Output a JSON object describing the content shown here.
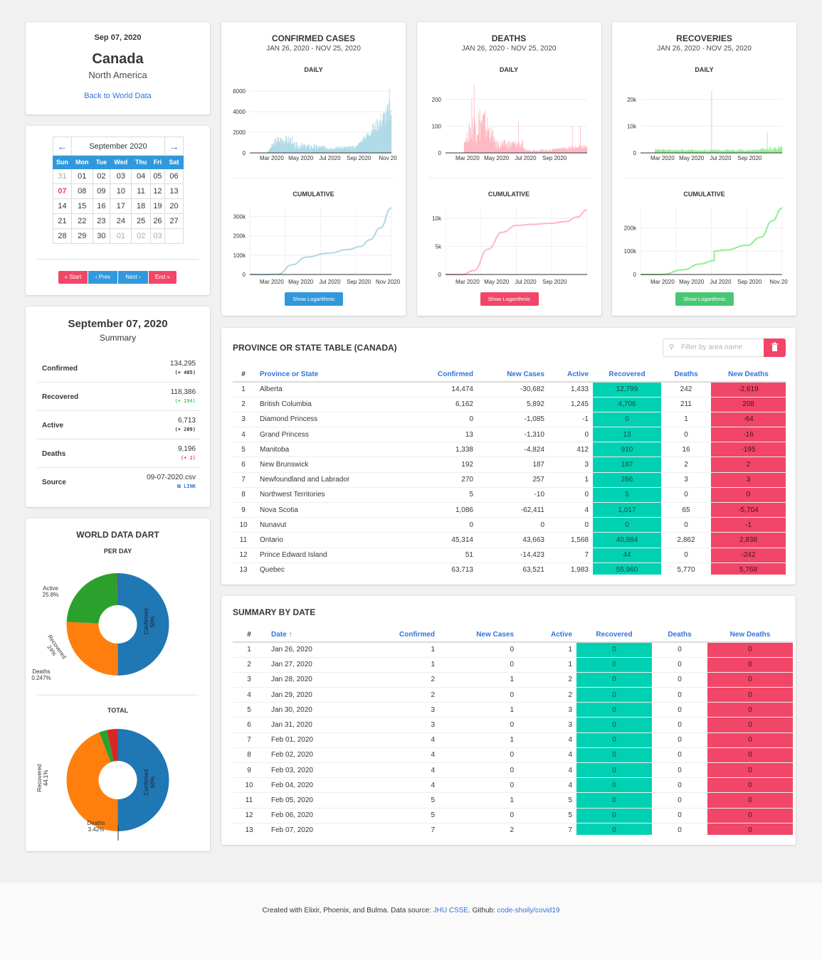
{
  "location": {
    "date": "Sep 07, 2020",
    "country": "Canada",
    "region": "North America",
    "back_link": "Back to World Data"
  },
  "calendar": {
    "month": "September 2020",
    "weekdays": [
      "Sun",
      "Mon",
      "Tue",
      "Wed",
      "Thu",
      "Fri",
      "Sat"
    ],
    "weeks": [
      [
        "31",
        "01",
        "02",
        "03",
        "04",
        "05",
        "06"
      ],
      [
        "07",
        "08",
        "09",
        "10",
        "11",
        "12",
        "13"
      ],
      [
        "14",
        "15",
        "16",
        "17",
        "18",
        "19",
        "20"
      ],
      [
        "21",
        "22",
        "23",
        "24",
        "25",
        "26",
        "27"
      ],
      [
        "28",
        "29",
        "30",
        "01",
        "02",
        "03",
        ""
      ]
    ],
    "today": "07",
    "buttons": {
      "start": "Start",
      "prev": "Prev",
      "next": "Next",
      "end": "End"
    }
  },
  "summary": {
    "title": "September 07, 2020",
    "subtitle": "Summary",
    "rows": [
      {
        "label": "Confirmed",
        "value": "134,295",
        "delta": "(+ 405)",
        "color": "#363636"
      },
      {
        "label": "Recovered",
        "value": "118,386",
        "delta": "(+ 194)",
        "color": "#48c774"
      },
      {
        "label": "Active",
        "value": "6,713",
        "delta": "(+ 209)",
        "color": "#363636"
      },
      {
        "label": "Deaths",
        "value": "9,196",
        "delta": "(+ 2)",
        "color": "#f14668"
      }
    ],
    "source": {
      "label": "Source",
      "file": "09-07-2020.csv",
      "link": "LINK"
    }
  },
  "donuts": {
    "title": "WORLD DATA DART",
    "per_day": "PER DAY",
    "total": "TOTAL",
    "per_day_slices": [
      {
        "name": "Confirmed",
        "pct": "50%",
        "value": 50,
        "color": "#1f77b4"
      },
      {
        "name": "Active",
        "pct": "25.8%",
        "value": 25.8,
        "color": "#ff7f0e"
      },
      {
        "name": "Recovered",
        "pct": "24%",
        "value": 24,
        "color": "#2ca02c"
      },
      {
        "name": "Deaths",
        "pct": "0.247%",
        "value": 0.247,
        "color": "#d62728"
      }
    ],
    "total_slices": [
      {
        "name": "Confirmed",
        "pct": "50%",
        "value": 50,
        "color": "#1f77b4"
      },
      {
        "name": "Recovered",
        "pct": "44.1%",
        "value": 44.1,
        "color": "#ff7f0e"
      },
      {
        "name": "",
        "pct": "",
        "value": 2.5,
        "color": "#2ca02c"
      },
      {
        "name": "Deaths",
        "pct": "3.42%",
        "value": 3.42,
        "color": "#d62728"
      }
    ]
  },
  "charts": {
    "daily_label": "DAILY",
    "cumulative_label": "CUMULATIVE",
    "log_button": "Show Logarithmic",
    "panels": [
      {
        "title": "CONFIRMED CASES",
        "range": "JAN 26, 2020 - NOV 25, 2020",
        "color": "#add8e6",
        "button_color": "#3298dc",
        "daily_ticks": [
          "0",
          "2000",
          "4000",
          "6000"
        ],
        "daily_max": 6500,
        "daily_x": [
          "Mar 2020",
          "May 2020",
          "Jul 2020",
          "Sep 2020",
          "Nov 20"
        ],
        "cum_ticks": [
          "0",
          "100k",
          "200k",
          "300k"
        ],
        "cum_max": 350000,
        "cum_x": [
          "Mar 2020",
          "May 2020",
          "Jul 2020",
          "Sep 2020",
          "Nov 2020"
        ],
        "cum_points": [
          [
            0,
            0
          ],
          [
            0.12,
            0
          ],
          [
            0.2,
            2000
          ],
          [
            0.3,
            50000
          ],
          [
            0.4,
            90000
          ],
          [
            0.55,
            110000
          ],
          [
            0.7,
            130000
          ],
          [
            0.78,
            145000
          ],
          [
            0.85,
            180000
          ],
          [
            0.92,
            240000
          ],
          [
            1,
            345000
          ]
        ]
      },
      {
        "title": "DEATHS",
        "range": "JAN 26, 2020 - NOV 25, 2020",
        "color": "#ffb6c1",
        "button_color": "#f14668",
        "daily_ticks": [
          "0",
          "100",
          "200"
        ],
        "daily_max": 250,
        "daily_x": [
          "Mar 2020",
          "May 2020",
          "Jul 2020",
          "Sep 2020"
        ],
        "cum_ticks": [
          "0",
          "5k",
          "10k"
        ],
        "cum_max": 12000,
        "cum_x": [
          "Mar 2020",
          "May 2020",
          "Jul 2020",
          "Sep 2020"
        ],
        "cum_points": [
          [
            0,
            0
          ],
          [
            0.12,
            0
          ],
          [
            0.2,
            700
          ],
          [
            0.3,
            4500
          ],
          [
            0.4,
            7500
          ],
          [
            0.5,
            8700
          ],
          [
            0.6,
            8900
          ],
          [
            0.75,
            9100
          ],
          [
            0.85,
            9400
          ],
          [
            0.93,
            10200
          ],
          [
            1,
            11500
          ]
        ]
      },
      {
        "title": "RECOVERIES",
        "range": "JAN 26, 2020 - NOV 25, 2020",
        "color": "#90ee90",
        "button_color": "#48c774",
        "daily_ticks": [
          "0",
          "10k",
          "20k"
        ],
        "daily_max": 25000,
        "daily_x": [
          "Mar 2020",
          "May 2020",
          "Jul 2020",
          "Sep 2020"
        ],
        "cum_ticks": [
          "0",
          "100k",
          "200k"
        ],
        "cum_max": 290000,
        "cum_x": [
          "Mar 2020",
          "May 2020",
          "Jul 2020",
          "Sep 2020",
          "Nov 20"
        ],
        "cum_points": [
          [
            0,
            0
          ],
          [
            0.15,
            0
          ],
          [
            0.3,
            20000
          ],
          [
            0.42,
            45000
          ],
          [
            0.52,
            60000
          ],
          [
            0.52,
            100000
          ],
          [
            0.6,
            105000
          ],
          [
            0.75,
            125000
          ],
          [
            0.85,
            160000
          ],
          [
            0.93,
            230000
          ],
          [
            1,
            285000
          ]
        ]
      }
    ]
  },
  "province": {
    "title": "PROVINCE OR STATE TABLE (CANADA)",
    "filter_placeholder": "Filter by area name",
    "columns": [
      "#",
      "Province or State",
      "Confirmed",
      "New Cases",
      "Active",
      "Recovered",
      "Deaths",
      "New Deaths"
    ],
    "rows": [
      [
        "1",
        "Alberta",
        "14,474",
        "-30,682",
        "1,433",
        "12,799",
        "242",
        "-2,619"
      ],
      [
        "2",
        "British Columbia",
        "6,162",
        "5,892",
        "1,245",
        "4,706",
        "211",
        "208"
      ],
      [
        "3",
        "Diamond Princess",
        "0",
        "-1,085",
        "-1",
        "0",
        "1",
        "-64"
      ],
      [
        "4",
        "Grand Princess",
        "13",
        "-1,310",
        "0",
        "13",
        "0",
        "-16"
      ],
      [
        "5",
        "Manitoba",
        "1,338",
        "-4,824",
        "412",
        "910",
        "16",
        "-195"
      ],
      [
        "6",
        "New Brunswick",
        "192",
        "187",
        "3",
        "187",
        "2",
        "2"
      ],
      [
        "7",
        "Newfoundland and Labrador",
        "270",
        "257",
        "1",
        "266",
        "3",
        "3"
      ],
      [
        "8",
        "Northwest Territories",
        "5",
        "-10",
        "0",
        "5",
        "0",
        "0"
      ],
      [
        "9",
        "Nova Scotia",
        "1,086",
        "-62,411",
        "4",
        "1,017",
        "65",
        "-5,704"
      ],
      [
        "10",
        "Nunavut",
        "0",
        "0",
        "0",
        "0",
        "0",
        "-1"
      ],
      [
        "11",
        "Ontario",
        "45,314",
        "43,663",
        "1,568",
        "40,884",
        "2,862",
        "2,838"
      ],
      [
        "12",
        "Prince Edward Island",
        "51",
        "-14,423",
        "7",
        "44",
        "0",
        "-242"
      ],
      [
        "13",
        "Quebec",
        "63,713",
        "63,521",
        "1,983",
        "55,960",
        "5,770",
        "5,768"
      ]
    ]
  },
  "by_date": {
    "title": "SUMMARY BY DATE",
    "columns": [
      "#",
      "Date ↑",
      "Confirmed",
      "New Cases",
      "Active",
      "Recovered",
      "Deaths",
      "New Deaths"
    ],
    "rows": [
      [
        "1",
        "Jan 26, 2020",
        "1",
        "0",
        "1",
        "0",
        "0",
        "0"
      ],
      [
        "2",
        "Jan 27, 2020",
        "1",
        "0",
        "1",
        "0",
        "0",
        "0"
      ],
      [
        "3",
        "Jan 28, 2020",
        "2",
        "1",
        "2",
        "0",
        "0",
        "0"
      ],
      [
        "4",
        "Jan 29, 2020",
        "2",
        "0",
        "2",
        "0",
        "0",
        "0"
      ],
      [
        "5",
        "Jan 30, 2020",
        "3",
        "1",
        "3",
        "0",
        "0",
        "0"
      ],
      [
        "6",
        "Jan 31, 2020",
        "3",
        "0",
        "3",
        "0",
        "0",
        "0"
      ],
      [
        "7",
        "Feb 01, 2020",
        "4",
        "1",
        "4",
        "0",
        "0",
        "0"
      ],
      [
        "8",
        "Feb 02, 2020",
        "4",
        "0",
        "4",
        "0",
        "0",
        "0"
      ],
      [
        "9",
        "Feb 03, 2020",
        "4",
        "0",
        "4",
        "0",
        "0",
        "0"
      ],
      [
        "10",
        "Feb 04, 2020",
        "4",
        "0",
        "4",
        "0",
        "0",
        "0"
      ],
      [
        "11",
        "Feb 05, 2020",
        "5",
        "1",
        "5",
        "0",
        "0",
        "0"
      ],
      [
        "12",
        "Feb 06, 2020",
        "5",
        "0",
        "5",
        "0",
        "0",
        "0"
      ],
      [
        "13",
        "Feb 07, 2020",
        "7",
        "2",
        "7",
        "0",
        "0",
        "0"
      ]
    ]
  },
  "footer": {
    "text": "Created with Elixir, Phoenix, and Bulma. Data source: ",
    "jhu": "JHU CSSE",
    "github_text": ". Github: ",
    "repo": "code-shoily/covid19"
  }
}
